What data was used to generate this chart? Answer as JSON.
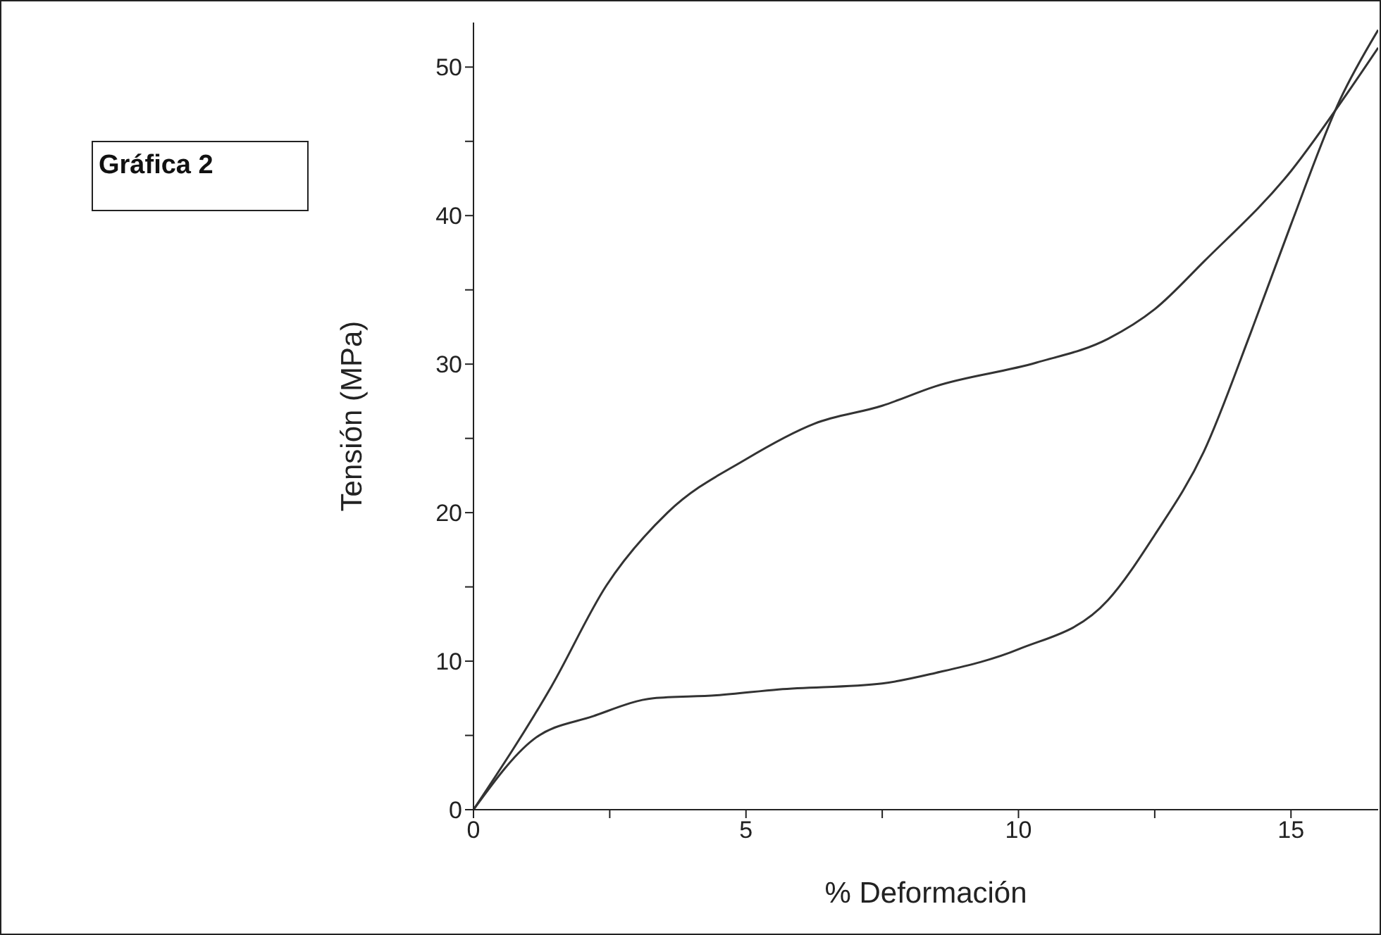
{
  "chart_data": {
    "type": "line",
    "title": "Gráfica 2",
    "xlabel": "% Deformación",
    "ylabel": "Tensión (MPa)",
    "xlim": [
      0,
      16.6
    ],
    "ylim": [
      0,
      53
    ],
    "xticks": [
      0,
      {
        "value": 2.5,
        "label": null
      },
      5,
      {
        "value": 7.5,
        "label": null
      },
      10,
      {
        "value": 12.5,
        "label": null
      },
      15
    ],
    "yticks": [
      0,
      {
        "value": 5,
        "label": null
      },
      10,
      {
        "value": 15,
        "label": null
      },
      20,
      {
        "value": 25,
        "label": null
      },
      30,
      {
        "value": 35,
        "label": null
      },
      40,
      {
        "value": 45,
        "label": null
      },
      50
    ],
    "series": [
      {
        "color": "#333333",
        "x": [
          0,
          1.43,
          2.44,
          3.56,
          5.0,
          6.26,
          7.5,
          8.47,
          10.33,
          11.64,
          12.5,
          13.4,
          15.0,
          16.1,
          16.6
        ],
        "values": [
          0,
          8.3,
          15.1,
          20,
          23.6,
          26,
          27.2,
          28.5,
          30.1,
          31.7,
          33.7,
          36.9,
          43,
          48.6,
          51.3
        ]
      },
      {
        "color": "#333333",
        "x": [
          0,
          1.09,
          2.2,
          3.3,
          4.46,
          5.6,
          7.5,
          8.47,
          10,
          11.64,
          12.5,
          13.4,
          14.26,
          15.0,
          15.9,
          16.6
        ],
        "values": [
          0,
          4.7,
          6.3,
          7.5,
          7.7,
          8.1,
          8.5,
          9.2,
          10.8,
          14.1,
          18.5,
          24.1,
          32.1,
          39.4,
          47.8,
          52.5
        ]
      }
    ]
  }
}
